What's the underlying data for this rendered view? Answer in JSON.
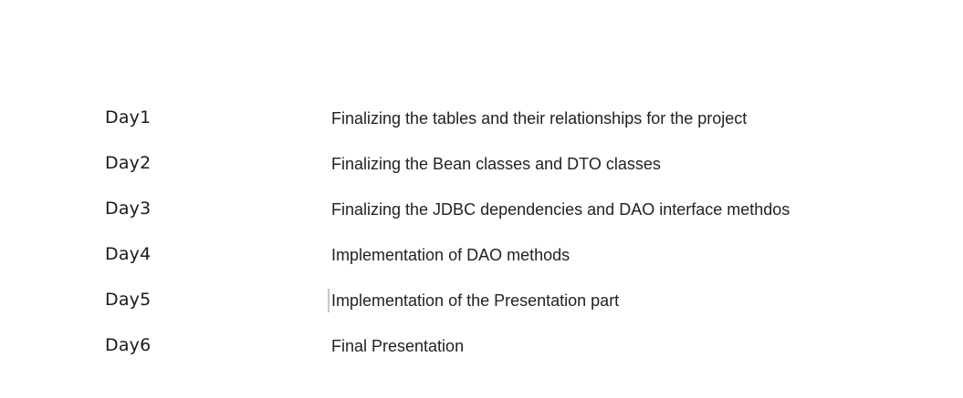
{
  "schedule": {
    "rows": [
      {
        "day": "Day1",
        "task": "Finalizing the tables and their relationships for the project"
      },
      {
        "day": "Day2",
        "task": "Finalizing the Bean classes and DTO classes"
      },
      {
        "day": "Day3",
        "task": "Finalizing the JDBC dependencies and DAO interface methdos"
      },
      {
        "day": "Day4",
        "task": "Implementation of DAO methods"
      },
      {
        "day": "Day5",
        "task": "Implementation of the Presentation part"
      },
      {
        "day": "Day6",
        "task": "Final Presentation"
      }
    ]
  }
}
